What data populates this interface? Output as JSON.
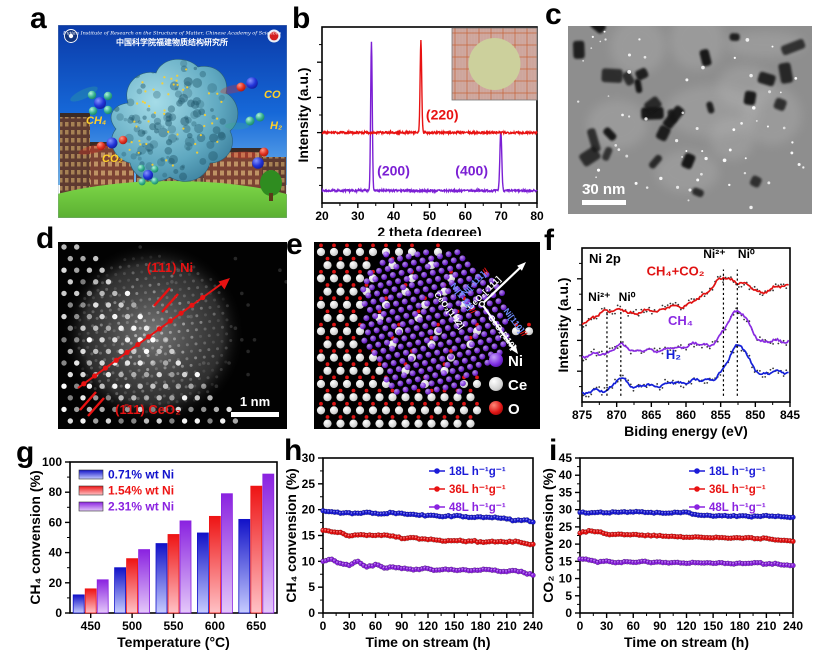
{
  "panels": {
    "a": "a",
    "b": "b",
    "c": "c",
    "d": "d",
    "e": "e",
    "f": "f",
    "g": "g",
    "h": "h",
    "i": "i"
  },
  "panel_a": {
    "header_line1": "Fujian Institute of Research on the Structure of Matter, Chinese Academy of Sciences",
    "header_line2": "中国科学院福建物质结构研究所",
    "labels": {
      "ch4": "CH₄",
      "co2": "CO₂",
      "co": "CO",
      "h2": "H₂"
    }
  },
  "panel_c": {
    "scale_bar": "30 nm"
  },
  "panel_d": {
    "label_ni": "(1̄11) Ni",
    "label_ceo2": "(1̄11) CeO₂",
    "scale_bar": "1 nm"
  },
  "panel_e": {
    "legend": [
      {
        "label": "Ni",
        "color": "#7b2be0"
      },
      {
        "label": "Ce",
        "color": "#e8e8e8"
      },
      {
        "label": "O",
        "color": "#dd1414"
      }
    ],
    "axis_labels": {
      "up_ni": "Ni[-111]",
      "up_sep": "//",
      "up_ceo2": "CeO₂[-111]",
      "right_ni": "Ni[110]",
      "right_sep": "//",
      "right_ceo2": "CeO₂[110]",
      "down_ni": "Ni[1-12]",
      "down_sep": "//",
      "down_ceo2": "CeO₂[1-12]"
    }
  },
  "chart_data": [
    {
      "panel": "b",
      "type": "line",
      "xlabel": "2 theta (degree)",
      "ylabel": "Intensity (a.u.)",
      "xlim": [
        20,
        80
      ],
      "xticks": [
        20,
        30,
        40,
        50,
        60,
        70,
        80
      ],
      "xminor_step": 5,
      "series": [
        {
          "name": "purple_pattern",
          "color": "#7b1fd4",
          "baseline": 0.07,
          "peaks": [
            {
              "center": 33.8,
              "height": 0.85,
              "width": 0.22
            },
            {
              "center": 69.9,
              "height": 0.34,
              "width": 0.26
            }
          ]
        },
        {
          "name": "red_pattern",
          "color": "#e81212",
          "baseline": 0.4,
          "peaks": [
            {
              "center": 47.6,
              "height": 0.52,
              "width": 0.22
            }
          ]
        }
      ],
      "peak_labels": [
        {
          "text": "(200)",
          "x": 35.4,
          "y": 0.155,
          "color": "#7b1fd4"
        },
        {
          "text": "(400)",
          "x": 57.2,
          "y": 0.155,
          "color": "#7b1fd4"
        },
        {
          "text": "(220)",
          "x": 49.0,
          "y": 0.475,
          "color": "#e81212"
        }
      ],
      "has_inset_photo": true
    },
    {
      "panel": "f",
      "type": "line",
      "title": "Ni 2p",
      "xlabel": "Biding energy (eV)",
      "ylabel": "Intensity (a.u.)",
      "xlim": [
        875,
        845
      ],
      "xticks": [
        875,
        870,
        865,
        860,
        855,
        850,
        845
      ],
      "xminor_step": 2.5,
      "series": [
        {
          "name": "CH₄+CO₂",
          "color": "#e01212",
          "label_x": 861.5,
          "label_y": 0.82,
          "baseline": [
            0.52,
            0.74
          ],
          "peaks": [
            {
              "center": 871.5,
              "height": 0.05,
              "width": 1.0
            },
            {
              "center": 869.2,
              "height": 0.025,
              "width": 1.0
            },
            {
              "center": 854.7,
              "height": 0.13,
              "width": 1.9
            },
            {
              "center": 851.6,
              "height": 0.04,
              "width": 1.2
            },
            {
              "center": 845.2,
              "height": 0.03,
              "width": 1.5
            }
          ]
        },
        {
          "name": "CH₄",
          "color": "#8a2be2",
          "label_x": 860.8,
          "label_y": 0.5,
          "baseline": [
            0.3,
            0.4
          ],
          "peaks": [
            {
              "center": 869.4,
              "height": 0.045,
              "width": 1.2
            },
            {
              "center": 859.0,
              "height": 0.02,
              "width": 1.5
            },
            {
              "center": 852.6,
              "height": 0.22,
              "width": 1.5
            }
          ]
        },
        {
          "name": "H₂",
          "color": "#1420d8",
          "label_x": 861.8,
          "label_y": 0.28,
          "baseline": [
            0.06,
            0.2
          ],
          "peaks": [
            {
              "center": 869.4,
              "height": 0.06,
              "width": 1.0
            },
            {
              "center": 852.5,
              "height": 0.21,
              "width": 1.3
            }
          ]
        }
      ],
      "dashed_lines": [
        {
          "x": 871.4,
          "y1": 0.04,
          "y2": 0.6
        },
        {
          "x": 869.4,
          "y1": 0.04,
          "y2": 0.6
        },
        {
          "x": 854.6,
          "y1": 0.04,
          "y2": 0.86
        },
        {
          "x": 852.6,
          "y1": 0.04,
          "y2": 0.86
        }
      ],
      "annotations": [
        {
          "text": "Ni²⁺",
          "x": 872.5,
          "y": 0.655
        },
        {
          "text": "Ni⁰",
          "x": 868.5,
          "y": 0.655
        },
        {
          "text": "Ni²⁺",
          "x": 855.9,
          "y": 0.935
        },
        {
          "text": "Ni⁰",
          "x": 851.3,
          "y": 0.935
        }
      ]
    },
    {
      "panel": "g",
      "type": "bar",
      "xlabel": "Temperature (°C)",
      "ylabel": "CH₄ convension (%)",
      "categories": [
        450,
        500,
        550,
        600,
        650
      ],
      "ylim": [
        0,
        100
      ],
      "yticks": [
        0,
        20,
        40,
        60,
        80,
        100
      ],
      "yminor_step": 10,
      "series": [
        {
          "name": "0.71% wt Ni",
          "color_top": "#1212c8",
          "color_bottom": "#c6ccff",
          "text_color": "#1212cc",
          "values": [
            12,
            30,
            46,
            53,
            62
          ]
        },
        {
          "name": "1.54% wt Ni",
          "color_top": "#ee1414",
          "color_bottom": "#ffc2c6",
          "text_color": "#ee1414",
          "values": [
            16,
            36,
            52,
            64,
            84
          ]
        },
        {
          "name": "2.31% wt Ni",
          "color_top": "#8a22e0",
          "color_bottom": "#e4c8fa",
          "text_color": "#8a22e0",
          "values": [
            22,
            42,
            61,
            79,
            92
          ]
        }
      ]
    },
    {
      "panel": "h",
      "type": "scatter-line",
      "xlabel": "Time on stream (h)",
      "ylabel": "CH₄ convension (%)",
      "xlim": [
        0,
        240
      ],
      "xticks": [
        0,
        30,
        60,
        90,
        120,
        150,
        180,
        210,
        240
      ],
      "xminor_step": 15,
      "ylim": [
        0,
        30
      ],
      "yticks": [
        0,
        5,
        10,
        15,
        20,
        25,
        30
      ],
      "yminor_step": 2.5,
      "x_step": 10,
      "series": [
        {
          "name": "18L h⁻¹g⁻¹",
          "color": "#1b1bd8",
          "values": [
            19.8,
            19.6,
            19.3,
            19.4,
            19.3,
            19.5,
            19.3,
            19.2,
            19.4,
            19.3,
            19.1,
            18.9,
            18.9,
            18.8,
            18.7,
            18.8,
            18.6,
            18.5,
            18.6,
            18.5,
            18.4,
            18.2,
            17.9,
            18.0,
            17.6
          ]
        },
        {
          "name": "36L h⁻¹g⁻¹",
          "color": "#e81212",
          "values": [
            16.0,
            15.7,
            15.6,
            14.9,
            15.1,
            15.0,
            15.0,
            15.1,
            14.9,
            14.4,
            14.6,
            14.3,
            14.2,
            14.1,
            13.9,
            14.0,
            13.9,
            13.9,
            13.8,
            13.8,
            13.8,
            13.7,
            13.9,
            13.5,
            13.3
          ]
        },
        {
          "name": "48L h⁻¹g⁻¹",
          "color": "#8a22e0",
          "values": [
            10.0,
            10.4,
            9.6,
            9.2,
            10.0,
            8.9,
            9.4,
            8.7,
            8.9,
            8.6,
            8.5,
            8.4,
            8.6,
            8.3,
            8.5,
            8.3,
            8.4,
            8.2,
            8.3,
            8.4,
            8.1,
            8.0,
            8.2,
            7.8,
            7.3
          ]
        }
      ]
    },
    {
      "panel": "i",
      "type": "scatter-line",
      "xlabel": "Time on stream (h)",
      "ylabel": "CO₂ convension (%)",
      "xlim": [
        0,
        240
      ],
      "xticks": [
        0,
        30,
        60,
        90,
        120,
        150,
        180,
        210,
        240
      ],
      "xminor_step": 15,
      "ylim": [
        0,
        45
      ],
      "yticks": [
        0,
        5,
        10,
        15,
        20,
        25,
        30,
        35,
        40,
        45
      ],
      "yminor_step": 2.5,
      "x_step": 10,
      "series": [
        {
          "name": "18L h⁻¹g⁻¹",
          "color": "#1b1bd8",
          "values": [
            29.2,
            29.0,
            29.2,
            29.1,
            29.3,
            29.4,
            29.3,
            29.4,
            29.2,
            29.1,
            29.0,
            29.2,
            29.3,
            28.6,
            28.3,
            28.1,
            28.2,
            28.1,
            28.2,
            28.0,
            28.1,
            28.3,
            28.0,
            27.9,
            27.8
          ]
        },
        {
          "name": "36L h⁻¹g⁻¹",
          "color": "#e81212",
          "values": [
            23.2,
            23.9,
            23.6,
            22.9,
            22.8,
            22.7,
            22.8,
            22.6,
            22.4,
            22.5,
            22.2,
            22.1,
            22.0,
            22.1,
            21.9,
            21.8,
            21.9,
            21.7,
            21.8,
            21.9,
            21.6,
            21.7,
            21.2,
            21.1,
            20.8
          ]
        },
        {
          "name": "48L h⁻¹g⁻¹",
          "color": "#8a22e0",
          "values": [
            15.7,
            15.4,
            14.7,
            15.1,
            14.6,
            14.9,
            14.7,
            15.0,
            14.6,
            14.8,
            14.5,
            14.7,
            14.4,
            14.6,
            14.5,
            14.4,
            14.6,
            14.3,
            14.5,
            14.4,
            14.6,
            14.2,
            14.4,
            13.9,
            13.8
          ]
        }
      ]
    }
  ]
}
